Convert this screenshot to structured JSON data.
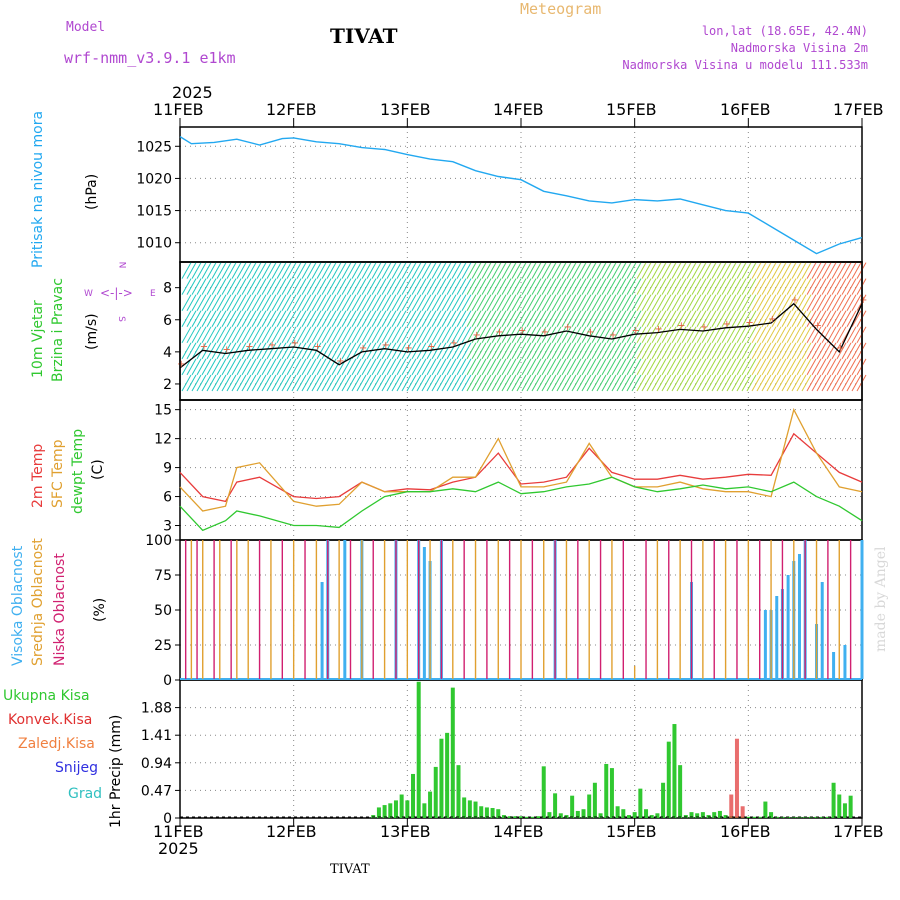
{
  "header": {
    "model_label": "Model",
    "model_name": "wrf-nmm_v3.9.1 e1km",
    "station": "TIVAT",
    "meteogram": "Meteogram",
    "lonlat": "lon,lat (18.65E, 42.4N)",
    "elevation": "Nadmorska Visina 2m",
    "model_elevation": "Nadmorska Visina u modelu 111.533m"
  },
  "time_axis": {
    "year": "2025",
    "ticks": [
      "11FEB",
      "12FEB",
      "13FEB",
      "14FEB",
      "15FEB",
      "16FEB",
      "17FEB"
    ]
  },
  "footer": {
    "station": "TIVAT",
    "credit": "made by Angel"
  },
  "colors": {
    "pressure": "#22a8f0",
    "wind_speed": "#000000",
    "gust": "#e06040",
    "temp2m": "#e83c3c",
    "sfc_temp": "#e0a030",
    "dewpt": "#30c830",
    "high_cloud": "#40b0f0",
    "mid_cloud": "#e0a030",
    "low_cloud": "#d02070",
    "precip_total": "#30c830",
    "precip_conv": "#e03030",
    "precip_frozen": "#f08040",
    "snow": "#3030e0",
    "hail": "#30c0c0"
  },
  "panels": {
    "pressure": {
      "label": "Pritisak na nivou mora",
      "unit": "(hPa)"
    },
    "wind": {
      "label1": "10m Vjetar",
      "label2": "Brzina i Pravac",
      "unit": "(m/s)",
      "compass_w": "W",
      "compass_e": "E",
      "compass_n": "N",
      "compass_s": "S"
    },
    "temp": {
      "label1": "2m Temp",
      "label2": "SFC Temp",
      "label3": "dewpt Temp",
      "unit": "(C)"
    },
    "cloud": {
      "label1": "Visoka Oblacnost",
      "label2": "Srednja Oblacnost",
      "label3": "Niska Oblacnost",
      "unit": "(%)"
    },
    "precip": {
      "unit": "1hr Precip (mm)",
      "legend": [
        "Ukupna Kisa",
        "Konvek.Kisa",
        "Zaledj.Kisa",
        "Snijeg",
        "Grad"
      ]
    }
  },
  "chart_data": [
    {
      "type": "line",
      "title": "",
      "ylabel": "Pritisak na nivou mora (hPa)",
      "ylim": [
        1007,
        1028
      ],
      "yticks": [
        1010,
        1015,
        1020,
        1025
      ],
      "x_days": [
        0,
        0.1,
        0.3,
        0.5,
        0.7,
        0.9,
        1.0,
        1.2,
        1.4,
        1.6,
        1.8,
        2.0,
        2.2,
        2.4,
        2.6,
        2.8,
        3.0,
        3.2,
        3.4,
        3.6,
        3.8,
        4.0,
        4.2,
        4.4,
        4.6,
        4.8,
        5.0,
        5.2,
        5.4,
        5.6,
        5.8,
        6.0
      ],
      "series": [
        {
          "values": [
            1026.5,
            1025.4,
            1025.6,
            1026.1,
            1025.2,
            1026.2,
            1026.3,
            1025.7,
            1025.4,
            1024.8,
            1024.5,
            1023.7,
            1023.0,
            1022.6,
            1021.2,
            1020.3,
            1019.8,
            1018.0,
            1017.3,
            1016.5,
            1016.2,
            1016.7,
            1016.5,
            1016.8,
            1015.9,
            1015.0,
            1014.6,
            1012.5,
            1010.4,
            1008.3,
            1009.8,
            1010.8
          ]
        }
      ],
      "grid": true
    },
    {
      "type": "line",
      "title": "",
      "ylabel": "10m Vjetar Brzina i Pravac (m/s)",
      "ylim": [
        1,
        9.6
      ],
      "yticks": [
        2,
        4,
        6,
        8
      ],
      "x_days": [
        0,
        0.2,
        0.4,
        0.6,
        0.8,
        1.0,
        1.2,
        1.4,
        1.6,
        1.8,
        2.0,
        2.2,
        2.4,
        2.6,
        2.8,
        3.0,
        3.2,
        3.4,
        3.6,
        3.8,
        4.0,
        4.2,
        4.4,
        4.6,
        4.8,
        5.0,
        5.2,
        5.4,
        5.6,
        5.8,
        6.0
      ],
      "series": [
        {
          "values": [
            3.0,
            4.1,
            3.9,
            4.1,
            4.2,
            4.3,
            4.1,
            3.2,
            4.0,
            4.2,
            4.0,
            4.1,
            4.3,
            4.8,
            5.0,
            5.1,
            5.0,
            5.3,
            5.0,
            4.8,
            5.1,
            5.2,
            5.4,
            5.3,
            5.5,
            5.6,
            5.8,
            7.0,
            5.4,
            4.0,
            7.0
          ]
        }
      ],
      "grid": true
    },
    {
      "type": "line",
      "title": "",
      "ylabel": "2m Temp / SFC Temp / dewpt Temp (C)",
      "ylim": [
        1.5,
        16
      ],
      "yticks": [
        3,
        6,
        9,
        12,
        15
      ],
      "x_days": [
        0,
        0.2,
        0.4,
        0.5,
        0.7,
        1.0,
        1.2,
        1.4,
        1.6,
        1.8,
        2.0,
        2.2,
        2.4,
        2.6,
        2.8,
        3.0,
        3.2,
        3.4,
        3.6,
        3.8,
        4.0,
        4.2,
        4.4,
        4.6,
        4.8,
        5.0,
        5.2,
        5.4,
        5.6,
        5.8,
        6.0
      ],
      "series": [
        {
          "name": "2m Temp",
          "values": [
            8.5,
            6.0,
            5.5,
            7.5,
            8.0,
            6.0,
            5.8,
            6.0,
            7.5,
            6.5,
            6.8,
            6.7,
            7.5,
            8.0,
            10.5,
            7.3,
            7.5,
            8.0,
            11.0,
            8.5,
            7.8,
            7.8,
            8.2,
            7.8,
            8.0,
            8.3,
            8.2,
            12.5,
            10.5,
            8.5,
            7.5
          ]
        },
        {
          "name": "SFC Temp",
          "values": [
            7.0,
            4.5,
            5.0,
            9.0,
            9.5,
            5.5,
            5.0,
            5.2,
            7.5,
            6.5,
            6.5,
            6.5,
            8.0,
            8.0,
            12.0,
            7.0,
            7.0,
            7.5,
            11.5,
            8.0,
            7.0,
            7.0,
            7.5,
            6.8,
            6.5,
            6.5,
            6.0,
            15.0,
            10.5,
            7.0,
            6.5
          ]
        },
        {
          "name": "dewpt Temp",
          "values": [
            5.0,
            2.5,
            3.5,
            4.5,
            4.0,
            3.0,
            3.0,
            2.8,
            4.5,
            6.0,
            6.5,
            6.5,
            6.8,
            6.5,
            7.5,
            6.3,
            6.5,
            7.0,
            7.3,
            8.0,
            7.0,
            6.5,
            6.8,
            7.2,
            6.8,
            7.0,
            6.5,
            7.5,
            6.0,
            5.0,
            3.5
          ]
        }
      ],
      "grid": true
    },
    {
      "type": "bar",
      "title": "",
      "ylabel": "Oblacnost (%)",
      "ylim": [
        0,
        100
      ],
      "yticks": [
        0,
        25,
        50,
        75,
        100
      ],
      "series": [
        {
          "name": "Visoka Oblacnost",
          "x_days": [
            1.25,
            1.3,
            1.45,
            1.6,
            1.9,
            2.1,
            2.15,
            2.2,
            2.3,
            3.3,
            4.5,
            5.15,
            5.2,
            5.25,
            5.3,
            5.35,
            5.4,
            5.45,
            5.5,
            5.6,
            5.65,
            5.75,
            5.85,
            6.0
          ],
          "values": [
            70,
            100,
            100,
            100,
            100,
            100,
            95,
            85,
            100,
            100,
            70,
            50,
            50,
            60,
            65,
            75,
            85,
            90,
            100,
            40,
            70,
            20,
            25,
            100
          ]
        },
        {
          "name": "Srednja Oblacnost",
          "x_days": [
            0.1,
            0.2,
            0.35,
            0.5,
            0.6,
            0.8,
            1.0,
            1.2,
            1.4,
            1.6,
            1.8,
            2.0,
            2.2,
            2.4,
            2.6,
            2.8,
            3.0,
            3.2,
            3.4,
            3.6,
            3.8,
            4.0,
            4.2,
            4.4,
            4.6,
            4.8,
            5.0,
            5.2,
            5.4,
            5.6,
            5.8
          ],
          "values": [
            100,
            100,
            100,
            100,
            100,
            100,
            100,
            100,
            100,
            100,
            100,
            100,
            100,
            100,
            100,
            100,
            100,
            100,
            100,
            100,
            100,
            10,
            100,
            100,
            100,
            100,
            100,
            100,
            100,
            100,
            100
          ]
        },
        {
          "name": "Niska Oblacnost",
          "x_days": [
            0.05,
            0.15,
            0.3,
            0.45,
            0.7,
            0.9,
            1.1,
            1.3,
            1.5,
            1.7,
            1.9,
            2.1,
            2.3,
            2.5,
            2.7,
            2.9,
            3.1,
            3.3,
            3.5,
            3.7,
            3.9,
            4.1,
            4.3,
            4.5,
            4.7,
            4.9,
            5.1,
            5.3,
            5.5,
            5.7,
            5.9
          ],
          "values": [
            100,
            100,
            100,
            100,
            100,
            100,
            100,
            100,
            100,
            100,
            100,
            100,
            100,
            100,
            100,
            100,
            100,
            100,
            100,
            100,
            100,
            100,
            100,
            100,
            100,
            100,
            100,
            100,
            100,
            100,
            100
          ]
        }
      ],
      "grid": true
    },
    {
      "type": "bar",
      "title": "",
      "ylabel": "1hr Precip (mm)",
      "ylim": [
        0,
        2.35
      ],
      "yticks": [
        0,
        0.47,
        0.94,
        1.41,
        1.88
      ],
      "series": [
        {
          "name": "Ukupna Kisa",
          "x_days": [
            1.7,
            1.75,
            1.8,
            1.85,
            1.9,
            1.95,
            2.0,
            2.05,
            2.1,
            2.15,
            2.2,
            2.25,
            2.3,
            2.35,
            2.4,
            2.45,
            2.5,
            2.55,
            2.6,
            2.65,
            2.7,
            2.75,
            2.8,
            2.85,
            2.9,
            2.95,
            3.0,
            3.05,
            3.1,
            3.15,
            3.2,
            3.25,
            3.3,
            3.35,
            3.4,
            3.45,
            3.5,
            3.55,
            3.6,
            3.65,
            3.7,
            3.75,
            3.8,
            3.85,
            3.9,
            3.95,
            4.0,
            4.05,
            4.1,
            4.15,
            4.2,
            4.25,
            4.3,
            4.35,
            4.4,
            4.45,
            4.5,
            4.55,
            4.6,
            4.65,
            4.7,
            4.75,
            4.8,
            4.85,
            4.9,
            4.95,
            5.0,
            5.05,
            5.1,
            5.15,
            5.2,
            5.25,
            5.3,
            5.35,
            5.4,
            5.45,
            5.5,
            5.55,
            5.6,
            5.65,
            5.7,
            5.75,
            5.8,
            5.85,
            5.9
          ],
          "values": [
            0.05,
            0.18,
            0.22,
            0.25,
            0.3,
            0.4,
            0.3,
            0.75,
            2.32,
            0.25,
            0.45,
            0.87,
            1.35,
            1.45,
            2.22,
            0.9,
            0.35,
            0.3,
            0.28,
            0.2,
            0.18,
            0.17,
            0.15,
            0.05,
            0.03,
            0.03,
            0.03,
            0.02,
            0.02,
            0.03,
            0.88,
            0.1,
            0.42,
            0.08,
            0.05,
            0.38,
            0.12,
            0.15,
            0.4,
            0.6,
            0.08,
            0.92,
            0.85,
            0.2,
            0.15,
            0.05,
            0.1,
            0.5,
            0.15,
            0.05,
            0.08,
            0.6,
            1.3,
            1.6,
            0.9,
            0.05,
            0.1,
            0.08,
            0.1,
            0.05,
            0.1,
            0.12,
            0.05,
            0.03,
            0.02,
            0.02,
            0.02,
            0.02,
            0.02,
            0.28,
            0.1,
            0.02,
            0.02,
            0.02,
            0.02,
            0.02,
            0.02,
            0.02,
            0.02,
            0.02,
            0.02,
            0.6,
            0.4,
            0.25,
            0.38
          ]
        },
        {
          "name": "Konvek.Kisa",
          "x_days": [
            4.85,
            4.9,
            4.95
          ],
          "values": [
            0.4,
            1.35,
            0.2
          ]
        }
      ],
      "grid": true
    }
  ]
}
